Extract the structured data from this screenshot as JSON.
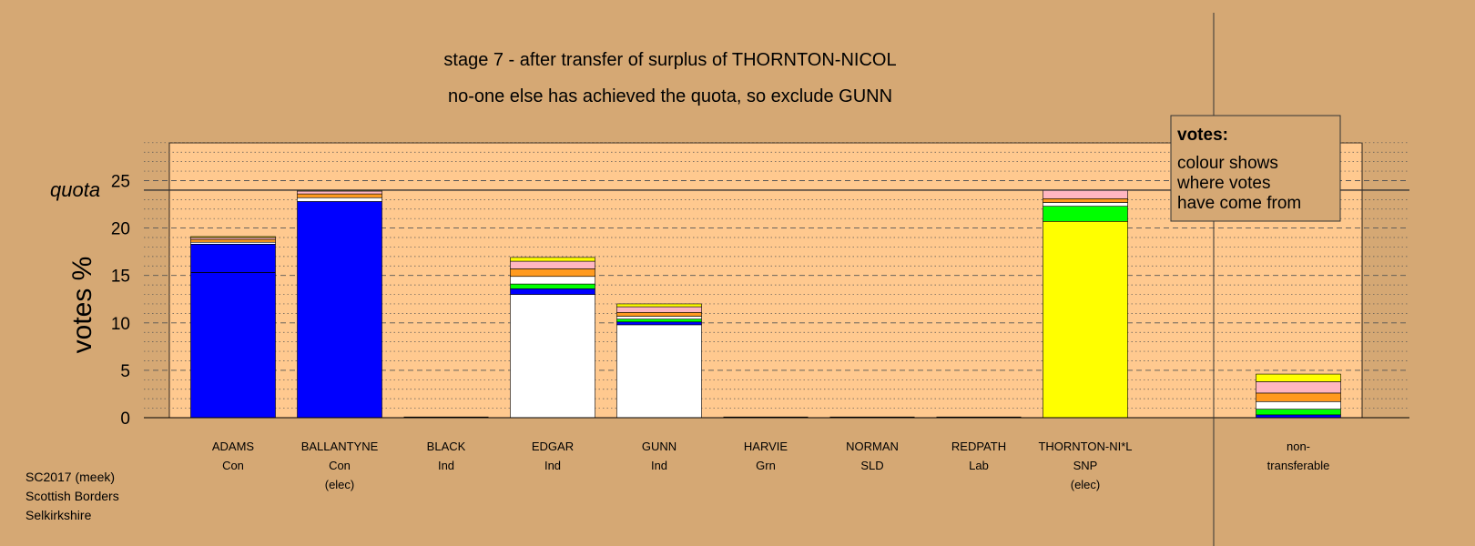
{
  "chart_data": {
    "type": "bar",
    "stacked": true,
    "title": "stage 7 - after transfer of surplus of THORNTON-NICOL",
    "subtitle": "no-one else has achieved the quota, so exclude GUNN",
    "ylabel": "votes %",
    "ylim": [
      0,
      29
    ],
    "yticks": [
      0,
      5,
      10,
      15,
      20,
      25
    ],
    "quota": 24,
    "quota_label": "quota",
    "grid": true,
    "categories": [
      {
        "name": "ADAMS",
        "party": "Con",
        "note": ""
      },
      {
        "name": "BALLANTYNE",
        "party": "Con",
        "note": "(elec)"
      },
      {
        "name": "BLACK",
        "party": "Ind",
        "note": ""
      },
      {
        "name": "EDGAR",
        "party": "Ind",
        "note": ""
      },
      {
        "name": "GUNN",
        "party": "Ind",
        "note": ""
      },
      {
        "name": "HARVIE",
        "party": "Grn",
        "note": ""
      },
      {
        "name": "NORMAN",
        "party": "SLD",
        "note": ""
      },
      {
        "name": "REDPATH",
        "party": "Lab",
        "note": ""
      },
      {
        "name": "THORNTON-NI*L",
        "party": "SNP",
        "note": "(elec)"
      },
      {
        "name": "non-",
        "party": "transferable",
        "note": ""
      }
    ],
    "bars": [
      {
        "segments": [
          {
            "color": "#0000ff",
            "value": 18.3
          },
          {
            "color": "#ffffff",
            "value": 0.2
          },
          {
            "color": "#ff9a1f",
            "value": 0.3
          },
          {
            "color": "#ffb6c1",
            "value": 0.2
          },
          {
            "color": "#ffff00",
            "value": 0.1
          }
        ],
        "marker": 15.3
      },
      {
        "segments": [
          {
            "color": "#0000ff",
            "value": 22.8
          },
          {
            "color": "#ffffff",
            "value": 0.4
          },
          {
            "color": "#ff9a1f",
            "value": 0.4
          },
          {
            "color": "#ffb6c1",
            "value": 0.3
          },
          {
            "color": "#ffff00",
            "value": 0.1
          }
        ]
      },
      {
        "segments": []
      },
      {
        "segments": [
          {
            "color": "#ffffff",
            "value": 13.0
          },
          {
            "color": "#0000ff",
            "value": 0.6
          },
          {
            "color": "#00ff00",
            "value": 0.5
          },
          {
            "color": "#ffffff",
            "value": 0.8
          },
          {
            "color": "#ff9a1f",
            "value": 0.8
          },
          {
            "color": "#ffb6c1",
            "value": 0.8
          },
          {
            "color": "#ffff00",
            "value": 0.4
          }
        ]
      },
      {
        "segments": [
          {
            "color": "#ffffff",
            "value": 9.8
          },
          {
            "color": "#0000ff",
            "value": 0.3
          },
          {
            "color": "#00ff00",
            "value": 0.3
          },
          {
            "color": "#ffffff",
            "value": 0.3
          },
          {
            "color": "#ff9a1f",
            "value": 0.4
          },
          {
            "color": "#ffb6c1",
            "value": 0.6
          },
          {
            "color": "#ffff00",
            "value": 0.3
          }
        ]
      },
      {
        "segments": []
      },
      {
        "segments": []
      },
      {
        "segments": []
      },
      {
        "segments": [
          {
            "color": "#ffff00",
            "value": 20.7
          },
          {
            "color": "#00ff00",
            "value": 1.6
          },
          {
            "color": "#ffffff",
            "value": 0.4
          },
          {
            "color": "#ff9a1f",
            "value": 0.4
          },
          {
            "color": "#ffb6c1",
            "value": 0.9
          }
        ]
      },
      {
        "segments": [
          {
            "color": "#0000ff",
            "value": 0.3
          },
          {
            "color": "#00ff00",
            "value": 0.6
          },
          {
            "color": "#ffffff",
            "value": 0.8
          },
          {
            "color": "#ff9a1f",
            "value": 0.9
          },
          {
            "color": "#ffb6c1",
            "value": 1.2
          },
          {
            "color": "#ffff00",
            "value": 0.8
          }
        ]
      }
    ]
  },
  "legend": {
    "heading": "votes:",
    "lines": [
      "colour shows",
      "where votes",
      "have come from"
    ]
  },
  "footer": {
    "lines": [
      "SC2017 (meek)",
      "Scottish Borders",
      "Selkirkshire"
    ]
  },
  "colors": {
    "background": "#d5a874",
    "plot_panel": "#ffc98f",
    "outline": "#000000"
  }
}
